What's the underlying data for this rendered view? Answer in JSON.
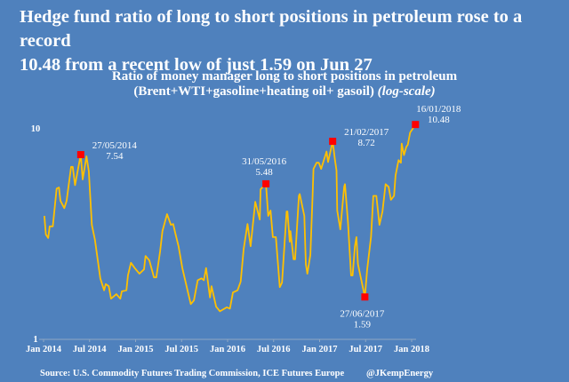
{
  "headline": [
    "Hedge fund ratio of long to short positions in petroleum rose to a record",
    "10.48 from a recent low of just 1.59 on Jun 27"
  ],
  "footer": {
    "source": "Source: U.S. Commodity Futures Trading Commission, ICE Futures Europe",
    "handle": "@JKempEnergy"
  },
  "colors": {
    "background": "#4f81bd",
    "line": "#ffc000",
    "marker": "#ff0000"
  },
  "chart_data": {
    "type": "line",
    "title": "Ratio of money manager long to short positions in petroleum",
    "subtitle": "(Brent+WTI+gasoline+heating oil+ gasoil)",
    "subtitle_note": "(log-scale)",
    "xlabel": "",
    "ylabel": "",
    "y_scale": "log",
    "ylim": [
      1,
      10.5
    ],
    "y_ticks": [
      {
        "value": 1,
        "label": "1"
      },
      {
        "value": 10,
        "label": "10"
      }
    ],
    "x_unit": "months since Jan 2014",
    "xlim": [
      0,
      48
    ],
    "x_ticks": [
      {
        "value": 0,
        "label": "Jan 2014"
      },
      {
        "value": 6,
        "label": "Jul 2014"
      },
      {
        "value": 12,
        "label": "Jan 2015"
      },
      {
        "value": 18,
        "label": "Jul 2015"
      },
      {
        "value": 24,
        "label": "Jan 2016"
      },
      {
        "value": 30,
        "label": "Jul 2016"
      },
      {
        "value": 36,
        "label": "Jan 2017"
      },
      {
        "value": 42,
        "label": "Jul 2017"
      },
      {
        "value": 48,
        "label": "Jan 2018"
      }
    ],
    "series": [
      {
        "name": "Long/short ratio",
        "points": [
          [
            0.1,
            3.86
          ],
          [
            0.3,
            3.15
          ],
          [
            0.6,
            3.03
          ],
          [
            0.8,
            3.44
          ],
          [
            1.2,
            3.44
          ],
          [
            1.7,
            5.2
          ],
          [
            2.0,
            5.26
          ],
          [
            2.2,
            4.55
          ],
          [
            2.7,
            4.2
          ],
          [
            3.0,
            4.55
          ],
          [
            3.6,
            6.6
          ],
          [
            3.8,
            6.6
          ],
          [
            4.1,
            5.4
          ],
          [
            4.85,
            7.54
          ],
          [
            5.1,
            5.75
          ],
          [
            5.6,
            7.4
          ],
          [
            5.9,
            6.28
          ],
          [
            6.3,
            3.5
          ],
          [
            6.7,
            2.97
          ],
          [
            7.4,
            1.95
          ],
          [
            7.9,
            1.71
          ],
          [
            8.1,
            1.83
          ],
          [
            8.5,
            1.79
          ],
          [
            8.8,
            1.56
          ],
          [
            9.5,
            1.64
          ],
          [
            10.0,
            1.56
          ],
          [
            10.2,
            1.69
          ],
          [
            10.8,
            1.71
          ],
          [
            11.0,
            2.01
          ],
          [
            11.4,
            2.31
          ],
          [
            11.9,
            2.18
          ],
          [
            12.5,
            2.05
          ],
          [
            13.1,
            2.15
          ],
          [
            13.3,
            2.49
          ],
          [
            13.8,
            2.37
          ],
          [
            14.4,
            1.97
          ],
          [
            14.7,
            1.97
          ],
          [
            15.2,
            2.62
          ],
          [
            15.5,
            3.27
          ],
          [
            16.1,
            3.93
          ],
          [
            16.6,
            3.5
          ],
          [
            16.9,
            3.53
          ],
          [
            17.2,
            3.18
          ],
          [
            17.6,
            2.77
          ],
          [
            18.1,
            2.18
          ],
          [
            18.8,
            1.69
          ],
          [
            19.2,
            1.47
          ],
          [
            19.6,
            1.53
          ],
          [
            20.1,
            1.91
          ],
          [
            20.6,
            1.95
          ],
          [
            20.9,
            1.91
          ],
          [
            21.2,
            2.18
          ],
          [
            21.7,
            1.58
          ],
          [
            21.9,
            1.79
          ],
          [
            22.5,
            1.43
          ],
          [
            23.0,
            1.36
          ],
          [
            23.9,
            1.42
          ],
          [
            24.3,
            1.4
          ],
          [
            24.7,
            1.67
          ],
          [
            25.3,
            1.71
          ],
          [
            25.7,
            1.88
          ],
          [
            26.1,
            2.69
          ],
          [
            26.6,
            3.53
          ],
          [
            27.0,
            2.77
          ],
          [
            27.6,
            4.5
          ],
          [
            28.2,
            3.71
          ],
          [
            28.3,
            5.16
          ],
          [
            29.0,
            5.48
          ],
          [
            29.3,
            3.86
          ],
          [
            29.6,
            4.09
          ],
          [
            29.9,
            3.06
          ],
          [
            30.3,
            3.06
          ],
          [
            30.8,
            1.77
          ],
          [
            31.1,
            1.86
          ],
          [
            31.7,
            4.05
          ],
          [
            31.8,
            4.05
          ],
          [
            32.1,
            2.91
          ],
          [
            32.2,
            3.27
          ],
          [
            32.6,
            2.4
          ],
          [
            32.8,
            2.4
          ],
          [
            33.3,
            4.8
          ],
          [
            33.4,
            4.9
          ],
          [
            34.0,
            3.86
          ],
          [
            34.2,
            2.28
          ],
          [
            34.4,
            2.05
          ],
          [
            34.8,
            2.52
          ],
          [
            35.1,
            4.95
          ],
          [
            35.2,
            6.45
          ],
          [
            35.6,
            6.9
          ],
          [
            35.9,
            6.9
          ],
          [
            36.2,
            6.45
          ],
          [
            36.9,
            7.8
          ],
          [
            37.1,
            6.95
          ],
          [
            37.7,
            8.72
          ],
          [
            38.0,
            7.1
          ],
          [
            38.2,
            6.34
          ],
          [
            38.3,
            4.09
          ],
          [
            38.7,
            3.33
          ],
          [
            39.2,
            5.3
          ],
          [
            39.3,
            5.46
          ],
          [
            39.7,
            3.6
          ],
          [
            40.1,
            2.01
          ],
          [
            40.3,
            2.01
          ],
          [
            40.6,
            2.77
          ],
          [
            40.8,
            3.06
          ],
          [
            41.0,
            2.28
          ],
          [
            41.9,
            1.59
          ],
          [
            42.2,
            2.15
          ],
          [
            42.7,
            3.06
          ],
          [
            43.0,
            4.8
          ],
          [
            43.4,
            4.8
          ],
          [
            43.8,
            3.5
          ],
          [
            44.2,
            4.05
          ],
          [
            44.6,
            5.46
          ],
          [
            45.0,
            5.3
          ],
          [
            45.3,
            4.6
          ],
          [
            45.7,
            4.8
          ],
          [
            45.9,
            6.0
          ],
          [
            46.3,
            7.1
          ],
          [
            46.6,
            6.9
          ],
          [
            46.7,
            8.5
          ],
          [
            47.0,
            7.5
          ],
          [
            47.3,
            8.2
          ],
          [
            47.5,
            8.4
          ],
          [
            47.8,
            9.6
          ],
          [
            48.5,
            10.48
          ]
        ]
      }
    ],
    "annotations": [
      {
        "x": 4.85,
        "y": 7.54,
        "date": "27/05/2014",
        "value": "7.54",
        "pos": "right"
      },
      {
        "x": 29.0,
        "y": 5.48,
        "date": "31/05/2016",
        "value": "5.48",
        "pos": "above"
      },
      {
        "x": 37.7,
        "y": 8.72,
        "date": "21/02/2017",
        "value": "8.72",
        "pos": "right"
      },
      {
        "x": 41.9,
        "y": 1.59,
        "date": "27/06/2017",
        "value": "1.59",
        "pos": "below"
      },
      {
        "x": 48.5,
        "y": 10.48,
        "date": "16/01/2018",
        "value": "10.48",
        "pos": "above-right"
      }
    ]
  }
}
